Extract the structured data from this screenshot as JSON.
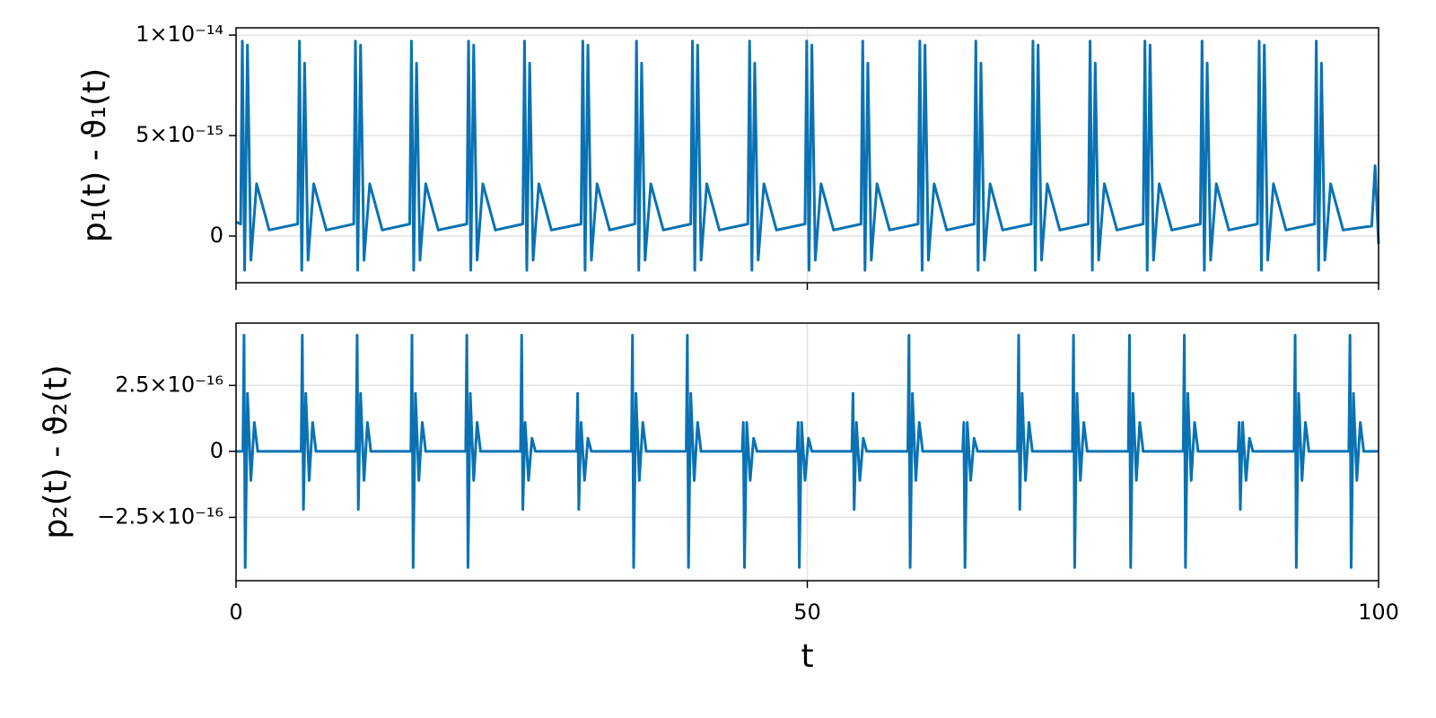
{
  "chart_data": [
    {
      "type": "line",
      "ylabel": "p₁(t) - ϑ₁(t)",
      "xlim": [
        0,
        100
      ],
      "xticks": [
        0,
        50,
        100
      ],
      "xticklabels": false,
      "ylim": [
        -2.32e-15,
        1.036e-14
      ],
      "yticks": [
        {
          "value": 0,
          "label": "0"
        },
        {
          "value": 5e-15,
          "label": "5×10⁻¹⁵"
        },
        {
          "value": 1e-14,
          "label": "1×10⁻¹⁴"
        }
      ],
      "grid": true,
      "series": [
        {
          "color": "#0a72b4",
          "x": [
            0,
            0.4,
            0.55,
            0.75,
            1.0,
            1.3,
            1.8,
            2.9,
            5.4,
            5.55,
            5.75,
            6.0,
            6.3,
            6.8,
            7.9,
            10.3,
            10.45,
            10.65,
            10.9,
            11.2,
            11.7,
            12.8,
            15.2,
            15.35,
            15.55,
            15.8,
            16.1,
            16.6,
            17.7,
            20.2,
            20.35,
            20.55,
            20.8,
            21.1,
            21.6,
            22.7,
            25.1,
            25.25,
            25.45,
            25.7,
            26.0,
            26.5,
            27.6,
            30.2,
            30.35,
            30.55,
            30.8,
            31.1,
            31.6,
            32.7,
            34.9,
            35.05,
            35.25,
            35.5,
            35.8,
            36.3,
            37.4,
            39.8,
            39.95,
            40.15,
            40.4,
            40.7,
            41.2,
            42.3,
            44.8,
            44.95,
            45.15,
            45.4,
            45.7,
            46.2,
            47.3,
            49.8,
            49.95,
            50.15,
            50.4,
            50.7,
            51.2,
            52.3,
            54.7,
            54.85,
            55.05,
            55.3,
            55.6,
            56.1,
            57.2,
            59.7,
            59.85,
            60.05,
            60.3,
            60.6,
            61.1,
            62.2,
            64.6,
            64.75,
            64.95,
            65.2,
            65.5,
            66.0,
            67.1,
            69.6,
            69.75,
            69.95,
            70.2,
            70.5,
            71.0,
            72.1,
            74.6,
            74.75,
            74.95,
            75.2,
            75.5,
            76.0,
            77.1,
            79.4,
            79.55,
            79.75,
            80.0,
            80.3,
            80.8,
            81.9,
            84.4,
            84.55,
            84.75,
            85.0,
            85.3,
            85.8,
            86.9,
            89.4,
            89.55,
            89.75,
            90.0,
            90.3,
            90.8,
            91.9,
            94.4,
            94.55,
            94.75,
            95.0,
            95.3,
            95.8,
            96.9,
            99.4,
            99.7,
            100
          ],
          "values": [
            7e-16,
            6e-16,
            9.7e-15,
            -1.7e-15,
            9.5e-15,
            -1.2e-15,
            2.6e-15,
            3e-16,
            6e-16,
            9.7e-15,
            -1.7e-15,
            8.6e-15,
            -1.2e-15,
            2.6e-15,
            3e-16,
            6e-16,
            9.7e-15,
            -1.7e-15,
            9.5e-15,
            -1.2e-15,
            2.6e-15,
            3e-16,
            6e-16,
            9.7e-15,
            -1.7e-15,
            8.6e-15,
            -1.2e-15,
            2.6e-15,
            3e-16,
            6e-16,
            9.7e-15,
            -1.7e-15,
            9.5e-15,
            -1.2e-15,
            2.6e-15,
            3e-16,
            6e-16,
            9.7e-15,
            -1.7e-15,
            8.6e-15,
            -1.2e-15,
            2.6e-15,
            3e-16,
            6e-16,
            9.7e-15,
            -1.7e-15,
            9.5e-15,
            -1.2e-15,
            2.6e-15,
            3e-16,
            6e-16,
            9.7e-15,
            -1.7e-15,
            8.6e-15,
            -1.2e-15,
            2.6e-15,
            3e-16,
            6e-16,
            9.7e-15,
            -1.7e-15,
            9.5e-15,
            -1.2e-15,
            2.6e-15,
            3e-16,
            6e-16,
            9.7e-15,
            -1.7e-15,
            8.6e-15,
            -1.2e-15,
            2.6e-15,
            3e-16,
            6e-16,
            9.7e-15,
            -1.7e-15,
            9.5e-15,
            -1.2e-15,
            2.6e-15,
            3e-16,
            6e-16,
            9.7e-15,
            -1.7e-15,
            8.6e-15,
            -1.2e-15,
            2.6e-15,
            3e-16,
            6e-16,
            9.7e-15,
            -1.7e-15,
            9.5e-15,
            -1.2e-15,
            2.6e-15,
            3e-16,
            6e-16,
            9.7e-15,
            -1.7e-15,
            8.6e-15,
            -1.2e-15,
            2.6e-15,
            3e-16,
            6e-16,
            9.7e-15,
            -1.7e-15,
            9.5e-15,
            -1.2e-15,
            2.6e-15,
            3e-16,
            6e-16,
            9.7e-15,
            -1.7e-15,
            8.6e-15,
            -1.2e-15,
            2.6e-15,
            3e-16,
            6e-16,
            9.7e-15,
            -1.7e-15,
            9.5e-15,
            -1.2e-15,
            2.6e-15,
            3e-16,
            6e-16,
            9.7e-15,
            -1.7e-15,
            8.6e-15,
            -1.2e-15,
            2.6e-15,
            3e-16,
            6e-16,
            9.7e-15,
            -1.7e-15,
            9.5e-15,
            -1.2e-15,
            2.6e-15,
            3e-16,
            6e-16,
            9.7e-15,
            -1.7e-15,
            8.6e-15,
            -1.2e-15,
            2.6e-15,
            3e-16,
            5e-16,
            3.5e-15,
            -4e-16
          ]
        }
      ]
    },
    {
      "type": "line",
      "ylabel": "p₂(t) - ϑ₂(t)",
      "xlabel": "t",
      "xlim": [
        0,
        100
      ],
      "xticks": [
        0,
        50,
        100
      ],
      "xticklabels": true,
      "ylim": [
        -4.9e-16,
        4.86e-16
      ],
      "yticks": [
        {
          "value": -2.5e-16,
          "label": "−2.5×10⁻¹⁶"
        },
        {
          "value": 0,
          "label": "0"
        },
        {
          "value": 2.5e-16,
          "label": "2.5×10⁻¹⁶"
        }
      ],
      "grid": true,
      "series": [
        {
          "color": "#0a72b4",
          "x": [
            0,
            0.6,
            0.7,
            0.8,
            1.0,
            1.3,
            1.6,
            1.9,
            5.7,
            5.8,
            5.9,
            6.1,
            6.4,
            6.7,
            7.0,
            10.5,
            10.6,
            10.7,
            10.9,
            11.2,
            11.5,
            11.8,
            15.3,
            15.4,
            15.5,
            15.7,
            16.0,
            16.3,
            16.6,
            20.1,
            20.2,
            20.3,
            20.5,
            20.8,
            21.1,
            21.4,
            24.9,
            25.0,
            25.1,
            25.3,
            25.6,
            25.9,
            26.2,
            29.8,
            29.9,
            30.0,
            30.2,
            30.5,
            30.8,
            31.1,
            34.6,
            34.7,
            34.8,
            35.0,
            35.3,
            35.6,
            35.9,
            39.4,
            39.5,
            39.6,
            39.8,
            40.1,
            40.4,
            40.7,
            44.3,
            44.4,
            44.5,
            44.7,
            45.0,
            45.3,
            45.6,
            49.1,
            49.2,
            49.3,
            49.5,
            49.8,
            50.1,
            50.4,
            53.9,
            54.0,
            54.1,
            54.3,
            54.6,
            54.9,
            55.2,
            58.8,
            58.9,
            59.0,
            59.2,
            59.5,
            59.8,
            60.1,
            63.6,
            63.7,
            63.8,
            64.0,
            64.3,
            64.6,
            64.9,
            68.4,
            68.5,
            68.6,
            68.8,
            69.1,
            69.4,
            69.7,
            73.2,
            73.3,
            73.4,
            73.6,
            73.9,
            74.2,
            74.5,
            78.1,
            78.2,
            78.3,
            78.5,
            78.8,
            79.1,
            79.4,
            82.9,
            83.0,
            83.1,
            83.3,
            83.6,
            83.9,
            84.2,
            87.7,
            87.8,
            87.9,
            88.1,
            88.4,
            88.7,
            89.0,
            92.6,
            92.7,
            92.8,
            93.0,
            93.3,
            93.6,
            93.9,
            97.4,
            97.5,
            97.6,
            97.8,
            98.1,
            98.4,
            98.7,
            100
          ],
          "values": [
            0,
            0,
            4.4e-16,
            -4.4e-16,
            2.2e-16,
            -1.1e-16,
            1.1e-16,
            0,
            0,
            4.4e-16,
            -2.2e-16,
            2.2e-16,
            -1.1e-16,
            1.1e-16,
            0,
            0,
            4.4e-16,
            -2.2e-16,
            2.2e-16,
            -1.1e-16,
            1.1e-16,
            0,
            0,
            4.4e-16,
            -4.4e-16,
            2.2e-16,
            -1.1e-16,
            1.1e-16,
            0,
            0,
            4.4e-16,
            -4.4e-16,
            2.2e-16,
            -1.1e-16,
            1.1e-16,
            0,
            0,
            4.4e-16,
            -2.2e-16,
            1.1e-16,
            -1.1e-16,
            5e-17,
            0,
            0,
            2.2e-16,
            -2.2e-16,
            1.1e-16,
            -1.1e-16,
            5e-17,
            0,
            0,
            4.4e-16,
            -4.4e-16,
            2.2e-16,
            -1.1e-16,
            1.1e-16,
            0,
            0,
            4.4e-16,
            -4.4e-16,
            2.2e-16,
            -1.1e-16,
            1.1e-16,
            0,
            0,
            1.1e-16,
            -4.4e-16,
            1.1e-16,
            -1.1e-16,
            5e-17,
            0,
            0,
            1.1e-16,
            -4.4e-16,
            1.1e-16,
            -1.1e-16,
            5e-17,
            0,
            0,
            2.2e-16,
            -2.2e-16,
            1.1e-16,
            -1.1e-16,
            5e-17,
            0,
            0,
            4.4e-16,
            -4.4e-16,
            2.2e-16,
            -1.1e-16,
            1.1e-16,
            0,
            0,
            1.1e-16,
            -4.4e-16,
            1.1e-16,
            -1.1e-16,
            5e-17,
            0,
            0,
            4.4e-16,
            -2.2e-16,
            2.2e-16,
            -1.1e-16,
            1.1e-16,
            0,
            0,
            4.4e-16,
            -4.4e-16,
            2.2e-16,
            -1.1e-16,
            1.1e-16,
            0,
            0,
            4.4e-16,
            -4.4e-16,
            2.2e-16,
            -1.1e-16,
            1.1e-16,
            0,
            0,
            4.4e-16,
            -4.4e-16,
            2.2e-16,
            -1.1e-16,
            1.1e-16,
            0,
            0,
            1.1e-16,
            -2.2e-16,
            1.1e-16,
            -1.1e-16,
            5e-17,
            0,
            0,
            4.4e-16,
            -4.4e-16,
            2.2e-16,
            -1.1e-16,
            1.1e-16,
            0,
            0,
            4.4e-16,
            -4.4e-16,
            2.2e-16,
            -1.1e-16,
            1.1e-16,
            0,
            0
          ]
        }
      ]
    }
  ]
}
